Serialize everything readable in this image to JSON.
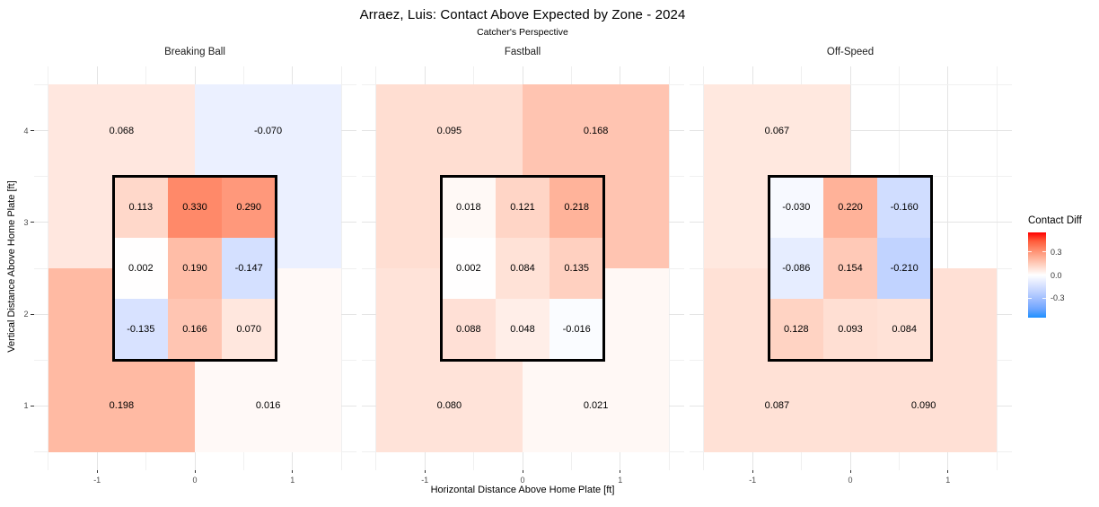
{
  "title": "Arraez, Luis: Contact Above Expected by Zone - 2024",
  "subtitle": "Catcher's Perspective",
  "axes": {
    "x_title": "Horizontal Distance Above Home Plate [ft]",
    "y_title": "Vertical Distance Above Home Plate [ft]",
    "x_tick_values": [
      -1,
      0,
      1
    ],
    "x_tick_labels": [
      "-1",
      "0",
      "1"
    ],
    "y_tick_values": [
      4,
      3,
      2,
      1
    ],
    "y_tick_labels": [
      "4",
      "3",
      "2",
      "1"
    ],
    "x_range": [
      -1.65,
      1.65
    ],
    "y_range": [
      0.3,
      4.7
    ],
    "grid_step": 0.5,
    "grid_on": true
  },
  "legend": {
    "title": "Contact Diff",
    "tick_values": [
      0.3,
      0.0,
      -0.3
    ],
    "tick_labels": [
      "0.3",
      "0.0",
      "-0.3"
    ],
    "position": "right"
  },
  "color_scale": {
    "low": "#1e90ff",
    "mid": "#ffffff",
    "high": "#ff0000",
    "limit": 0.55
  },
  "chart_data": {
    "type": "heatmap",
    "title": "Arraez, Luis: Contact Above Expected by Zone - 2024",
    "subtitle": "Catcher's Perspective",
    "value_name": "Contact Diff",
    "strike_zone": {
      "x0": -0.83,
      "x1": 0.83,
      "y0": 1.5,
      "y1": 3.5
    },
    "facets": [
      {
        "label": "Breaking Ball",
        "outer_zones": [
          {
            "x0": -1.5,
            "x1": 0.0,
            "y0": 2.5,
            "y1": 4.5,
            "value": 0.068
          },
          {
            "x0": 0.0,
            "x1": 1.5,
            "y0": 2.5,
            "y1": 4.5,
            "value": -0.07
          },
          {
            "x0": -1.5,
            "x1": 0.0,
            "y0": 0.5,
            "y1": 2.5,
            "value": 0.198
          },
          {
            "x0": 0.0,
            "x1": 1.5,
            "y0": 0.5,
            "y1": 2.5,
            "value": 0.016
          }
        ],
        "strike_zone_rows": [
          [
            0.113,
            0.33,
            0.29
          ],
          [
            0.002,
            0.19,
            -0.147
          ],
          [
            -0.135,
            0.166,
            0.07
          ]
        ]
      },
      {
        "label": "Fastball",
        "outer_zones": [
          {
            "x0": -1.5,
            "x1": 0.0,
            "y0": 2.5,
            "y1": 4.5,
            "value": 0.095
          },
          {
            "x0": 0.0,
            "x1": 1.5,
            "y0": 2.5,
            "y1": 4.5,
            "value": 0.168
          },
          {
            "x0": -1.5,
            "x1": 0.0,
            "y0": 0.5,
            "y1": 2.5,
            "value": 0.08
          },
          {
            "x0": 0.0,
            "x1": 1.5,
            "y0": 0.5,
            "y1": 2.5,
            "value": 0.021
          }
        ],
        "strike_zone_rows": [
          [
            0.018,
            0.121,
            0.218
          ],
          [
            0.002,
            0.084,
            0.135
          ],
          [
            0.088,
            0.048,
            -0.016
          ]
        ]
      },
      {
        "label": "Off-Speed",
        "outer_zones": [
          {
            "x0": -1.5,
            "x1": 0.0,
            "y0": 2.5,
            "y1": 4.5,
            "value": 0.067
          },
          {
            "x0": -1.5,
            "x1": 0.0,
            "y0": 0.5,
            "y1": 2.5,
            "value": 0.087
          },
          {
            "x0": 0.0,
            "x1": 1.5,
            "y0": 0.5,
            "y1": 2.5,
            "value": 0.09
          }
        ],
        "strike_zone_rows": [
          [
            -0.03,
            0.22,
            -0.16
          ],
          [
            -0.086,
            0.154,
            -0.21
          ],
          [
            0.128,
            0.093,
            0.084
          ]
        ]
      }
    ]
  }
}
